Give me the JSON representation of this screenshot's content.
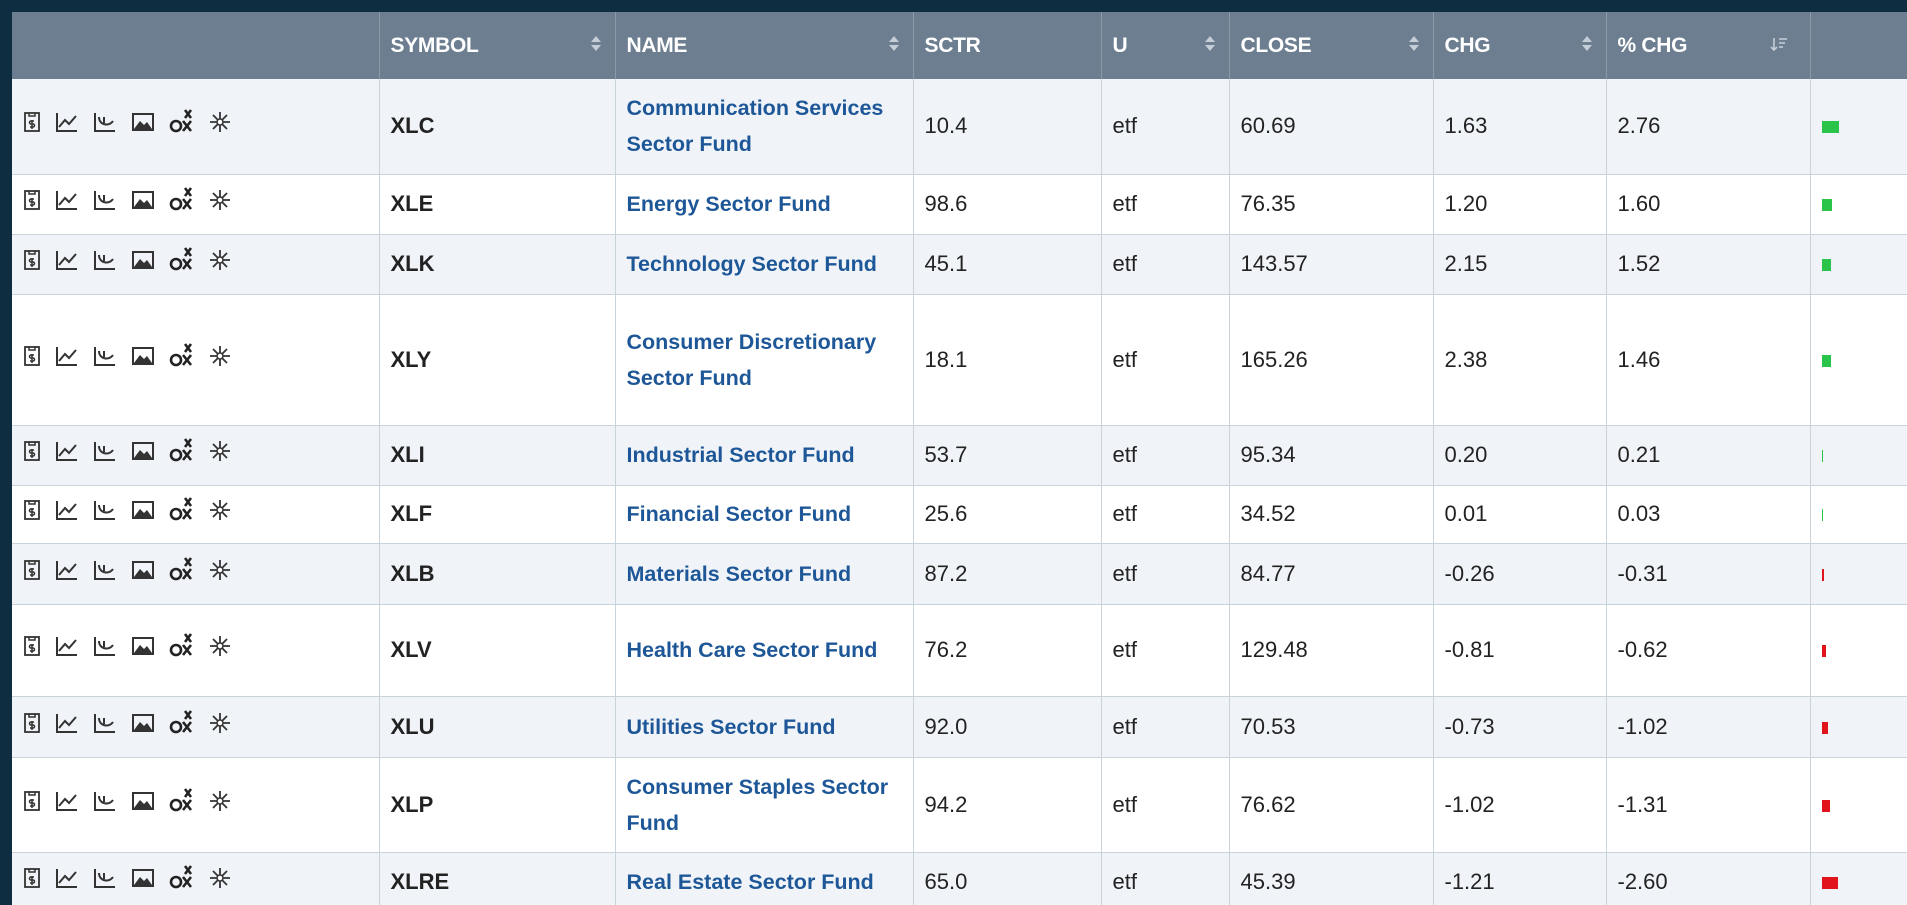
{
  "table": {
    "columns": [
      {
        "key": "symbol",
        "label": "SYMBOL"
      },
      {
        "key": "name",
        "label": "NAME"
      },
      {
        "key": "sctr",
        "label": "SCTR"
      },
      {
        "key": "u",
        "label": "U"
      },
      {
        "key": "close",
        "label": "CLOSE"
      },
      {
        "key": "chg",
        "label": "CHG"
      },
      {
        "key": "pct_chg",
        "label": "% CHG"
      }
    ],
    "rows": [
      {
        "symbol": "XLC",
        "name": "Communication Services Sector Fund",
        "sctr": "10.4",
        "u": "etf",
        "close": "60.69",
        "chg": "1.63",
        "pct_chg": "2.76"
      },
      {
        "symbol": "XLE",
        "name": "Energy Sector Fund",
        "sctr": "98.6",
        "u": "etf",
        "close": "76.35",
        "chg": "1.20",
        "pct_chg": "1.60"
      },
      {
        "symbol": "XLK",
        "name": "Technology Sector Fund",
        "sctr": "45.1",
        "u": "etf",
        "close": "143.57",
        "chg": "2.15",
        "pct_chg": "1.52"
      },
      {
        "symbol": "XLY",
        "name": "Consumer Discretionary Sector Fund",
        "sctr": "18.1",
        "u": "etf",
        "close": "165.26",
        "chg": "2.38",
        "pct_chg": "1.46"
      },
      {
        "symbol": "XLI",
        "name": "Industrial Sector Fund",
        "sctr": "53.7",
        "u": "etf",
        "close": "95.34",
        "chg": "0.20",
        "pct_chg": "0.21"
      },
      {
        "symbol": "XLF",
        "name": "Financial Sector Fund",
        "sctr": "25.6",
        "u": "etf",
        "close": "34.52",
        "chg": "0.01",
        "pct_chg": "0.03"
      },
      {
        "symbol": "XLB",
        "name": "Materials Sector Fund",
        "sctr": "87.2",
        "u": "etf",
        "close": "84.77",
        "chg": "-0.26",
        "pct_chg": "-0.31"
      },
      {
        "symbol": "XLV",
        "name": "Health Care Sector Fund",
        "sctr": "76.2",
        "u": "etf",
        "close": "129.48",
        "chg": "-0.81",
        "pct_chg": "-0.62"
      },
      {
        "symbol": "XLU",
        "name": "Utilities Sector Fund",
        "sctr": "92.0",
        "u": "etf",
        "close": "70.53",
        "chg": "-0.73",
        "pct_chg": "-1.02"
      },
      {
        "symbol": "XLP",
        "name": "Consumer Staples Sector Fund",
        "sctr": "94.2",
        "u": "etf",
        "close": "76.62",
        "chg": "-1.02",
        "pct_chg": "-1.31"
      },
      {
        "symbol": "XLRE",
        "name": "Real Estate Sector Fund",
        "sctr": "65.0",
        "u": "etf",
        "close": "45.39",
        "chg": "-1.21",
        "pct_chg": "-2.60"
      }
    ]
  }
}
